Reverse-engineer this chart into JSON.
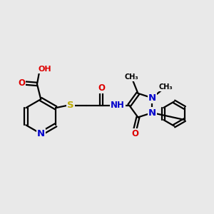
{
  "bg_color": "#e9e9e9",
  "bond_color": "#000000",
  "bond_width": 1.6,
  "atom_colors": {
    "N": "#0000cc",
    "O": "#dd0000",
    "S": "#bbaa00",
    "C": "#000000"
  },
  "font_size": 8.5,
  "fig_width": 3.0,
  "fig_height": 3.0,
  "dpi": 100,
  "xlim": [
    0,
    10
  ],
  "ylim": [
    0,
    10
  ]
}
